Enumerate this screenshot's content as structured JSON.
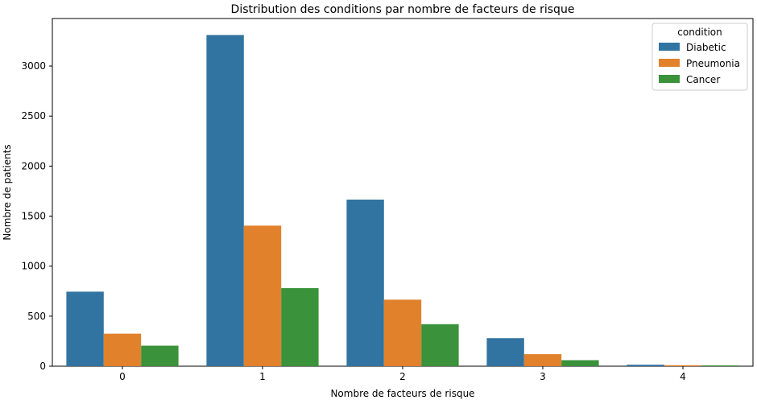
{
  "chart_data": {
    "type": "bar",
    "title": "Distribution des conditions par nombre de facteurs de risque",
    "xlabel": "Nombre de facteurs de risque",
    "ylabel": "Nombre de patients",
    "categories": [
      "0",
      "1",
      "2",
      "3",
      "4"
    ],
    "series": [
      {
        "name": "Diabetic",
        "color": "#3274a1",
        "values": [
          745,
          3310,
          1665,
          280,
          15
        ]
      },
      {
        "name": "Pneumonia",
        "color": "#e1812c",
        "values": [
          325,
          1405,
          665,
          120,
          10
        ]
      },
      {
        "name": "Cancer",
        "color": "#3a923a",
        "values": [
          205,
          780,
          420,
          60,
          8
        ]
      }
    ],
    "ylim": [
      0,
      3475
    ],
    "yticks": [
      "0",
      "500",
      "1000",
      "1500",
      "2000",
      "2500",
      "3000"
    ],
    "legend": {
      "title": "condition",
      "position": "top-right"
    },
    "grid": false
  }
}
